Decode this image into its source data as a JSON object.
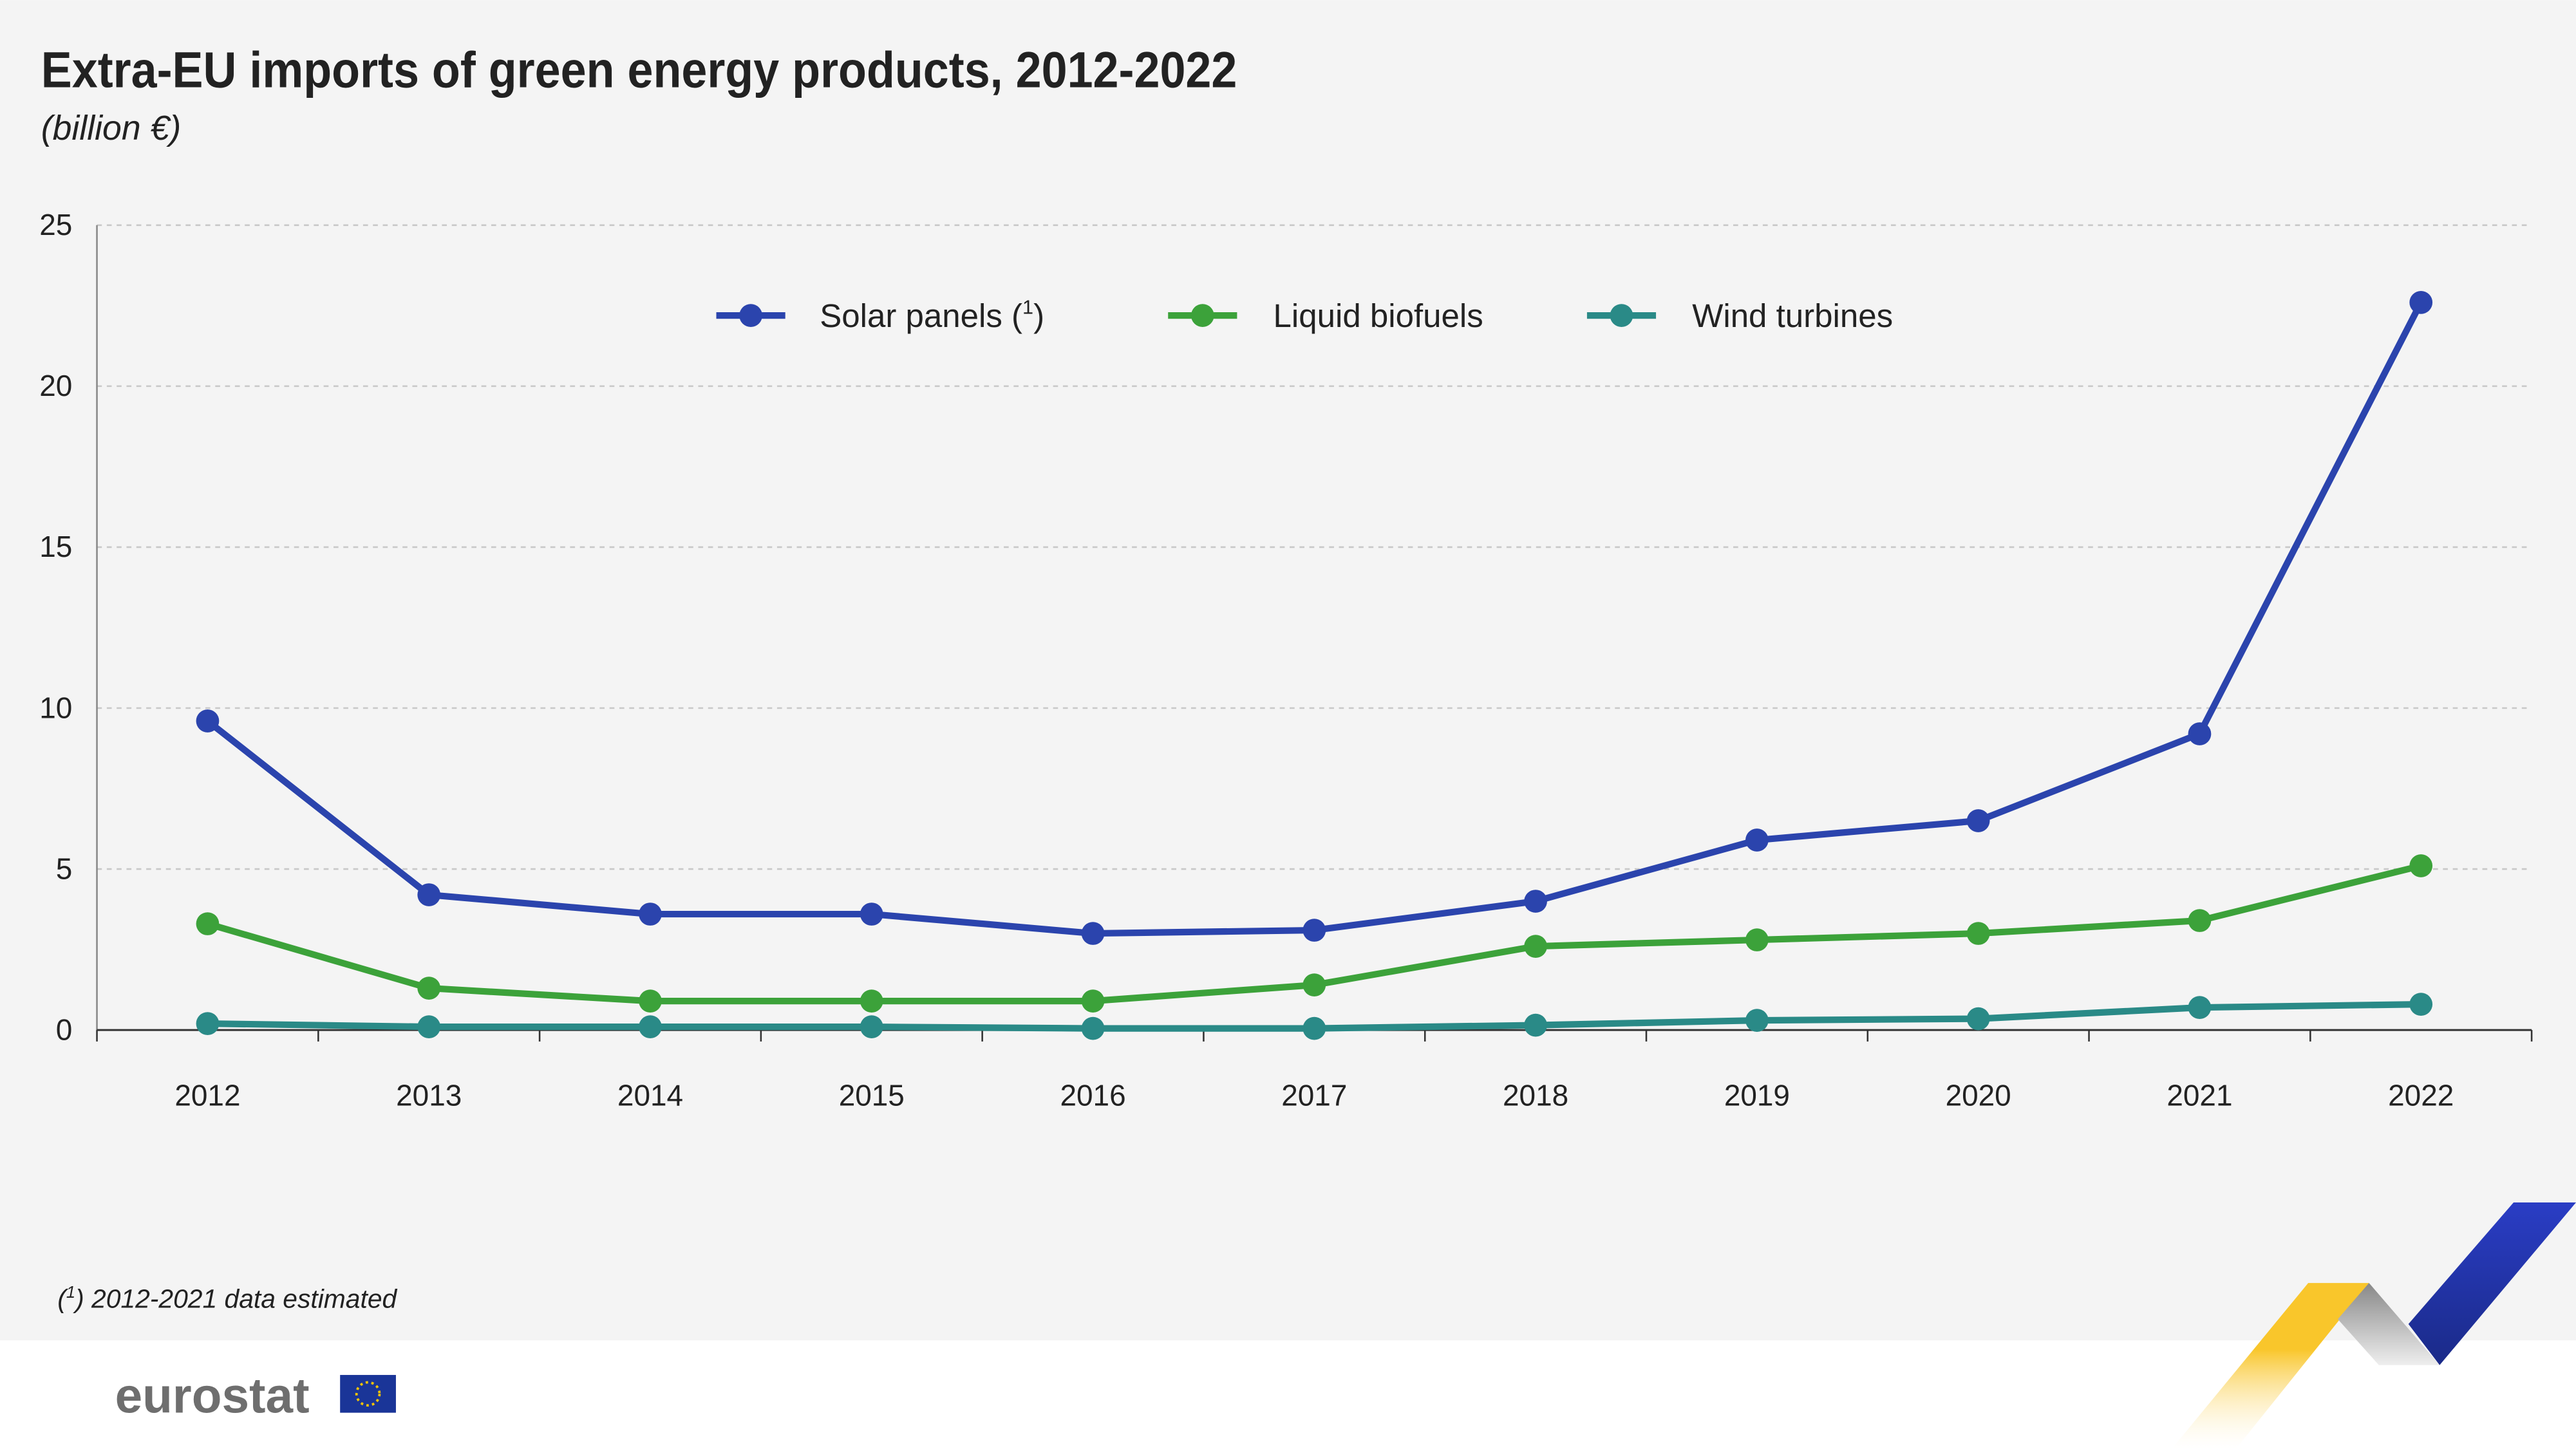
{
  "chart_data": {
    "type": "line",
    "title": "Extra-EU imports of green energy products, 2012-2022",
    "subtitle": "(billion €)",
    "xlabel": "",
    "ylabel": "",
    "categories": [
      "2012",
      "2013",
      "2014",
      "2015",
      "2016",
      "2017",
      "2018",
      "2019",
      "2020",
      "2021",
      "2022"
    ],
    "ylim": [
      0,
      25
    ],
    "yticks": [
      "0",
      "5",
      "10",
      "15",
      "20",
      "25"
    ],
    "grid": true,
    "legend_position": "top-center",
    "series": [
      {
        "name": "Solar panels (1)",
        "color": "#2b44ad",
        "values": [
          9.6,
          4.2,
          3.6,
          3.6,
          3.0,
          3.1,
          4.0,
          5.9,
          6.5,
          9.2,
          22.6
        ]
      },
      {
        "name": "Liquid biofuels",
        "color": "#3ca23a",
        "values": [
          3.3,
          1.3,
          0.9,
          0.9,
          0.9,
          1.4,
          2.6,
          2.8,
          3.0,
          3.4,
          5.1
        ]
      },
      {
        "name": "Wind turbines",
        "color": "#2a8a87",
        "values": [
          0.2,
          0.1,
          0.1,
          0.1,
          0.05,
          0.05,
          0.15,
          0.3,
          0.35,
          0.7,
          0.8
        ]
      }
    ],
    "footnote": "(1) 2012-2021 data estimated"
  },
  "legend_labels": {
    "solar": "Solar panels (",
    "solar_sup": "1",
    "solar_end": ")",
    "biofuels": "Liquid biofuels",
    "wind": "Wind turbines"
  },
  "footnote": {
    "open": "(",
    "sup": "1",
    "text": ") 2012-2021 data estimated"
  },
  "logo": {
    "text": "eurostat"
  }
}
